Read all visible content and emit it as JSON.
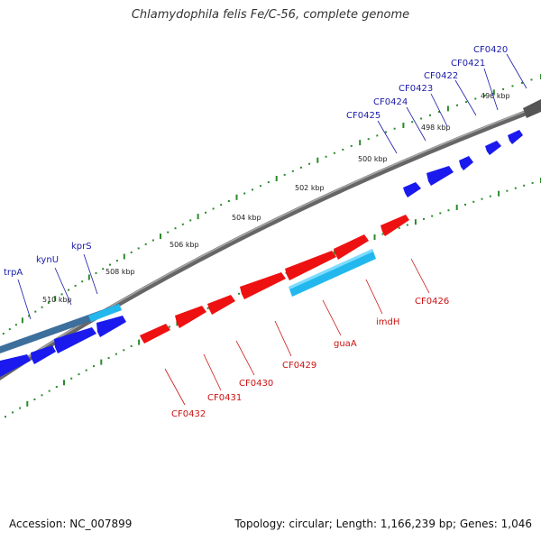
{
  "title": "Chlamydophila felis Fe/C-56, complete genome",
  "footer": {
    "accession": "Accession: NC_007899",
    "summary": "Topology: circular; Length: 1,166,239 bp; Genes: 1,046"
  },
  "colors": {
    "forward_gene": "#1a1aee",
    "reverse_gene": "#ee1111",
    "highlight_gene": "#22b8ee",
    "backbone": "#777777",
    "tick": "#2a8a2a",
    "forward_label": "#1a1aaa",
    "reverse_label": "#cc1111"
  },
  "position_labels": [
    "496 kbp",
    "498 kbp",
    "500 kbp",
    "502 kbp",
    "504 kbp",
    "506 kbp",
    "508 kbp",
    "510 kbp"
  ],
  "forward_genes": [
    "CF0420",
    "CF0421",
    "CF0422",
    "CF0423",
    "CF0424",
    "CF0425",
    "kprS",
    "kynU",
    "trpA"
  ],
  "reverse_genes": [
    "CF0426",
    "imdH",
    "guaA",
    "CF0429",
    "CF0430",
    "CF0431",
    "CF0432"
  ]
}
